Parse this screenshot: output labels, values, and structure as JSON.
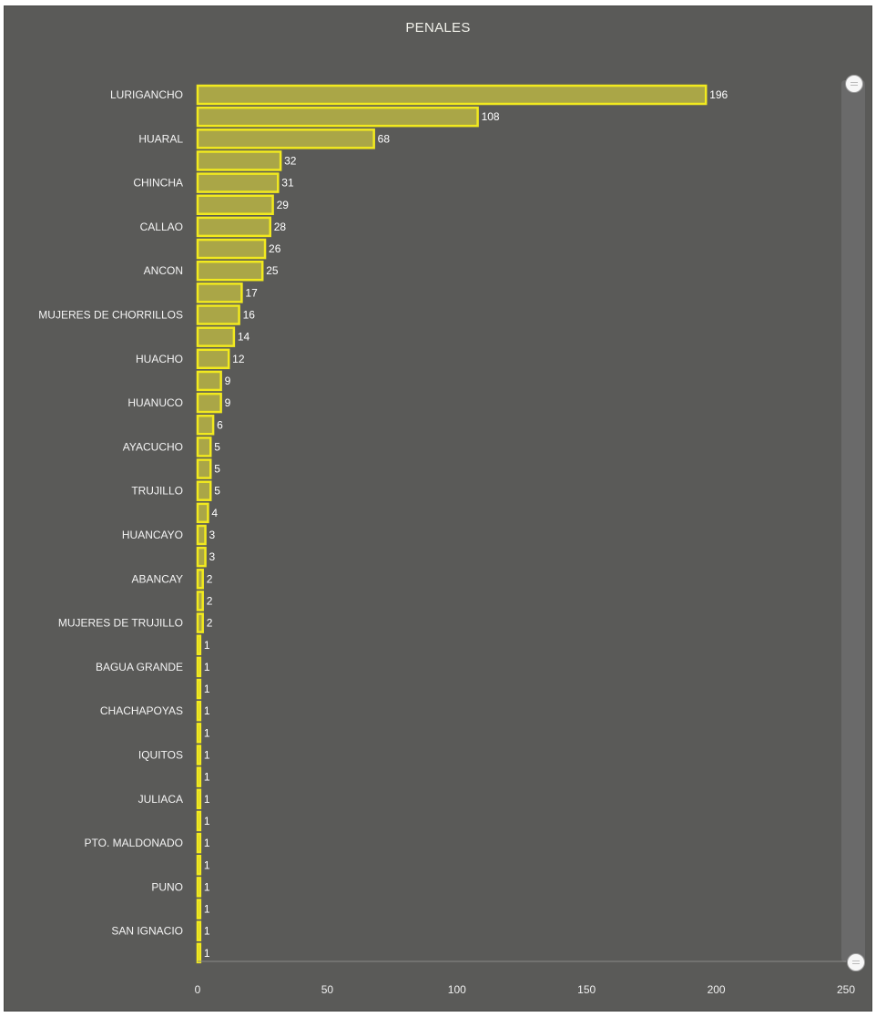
{
  "chart_data": {
    "type": "bar",
    "orientation": "horizontal",
    "title": "PENALES",
    "xlim": [
      0,
      250
    ],
    "xticks": [
      0,
      50,
      100,
      150,
      200,
      250
    ],
    "grid": false,
    "legend": "none",
    "bar_color": "#c9c341",
    "bar_border_color": "#f2ea1e",
    "background_color": "#5a5a58",
    "categories": [
      "LURIGANCHO",
      "",
      "HUARAL",
      "",
      "CHINCHA",
      "",
      "CALLAO",
      "",
      "ANCON",
      "",
      "MUJERES DE CHORRILLOS",
      "",
      "HUACHO",
      "",
      "HUANUCO",
      "",
      "AYACUCHO",
      "",
      "TRUJILLO",
      "",
      "HUANCAYO",
      "",
      "ABANCAY",
      "",
      "MUJERES DE TRUJILLO",
      "",
      "BAGUA GRANDE",
      "",
      "CHACHAPOYAS",
      "",
      "IQUITOS",
      "",
      "JULIACA",
      "",
      "PTO. MALDONADO",
      "",
      "PUNO",
      "",
      "SAN IGNACIO",
      ""
    ],
    "values": [
      196,
      108,
      68,
      32,
      31,
      29,
      28,
      26,
      25,
      17,
      16,
      14,
      12,
      9,
      9,
      6,
      5,
      5,
      5,
      4,
      3,
      3,
      2,
      2,
      2,
      1,
      1,
      1,
      1,
      1,
      1,
      1,
      1,
      1,
      1,
      1,
      1,
      1,
      1,
      1
    ]
  }
}
